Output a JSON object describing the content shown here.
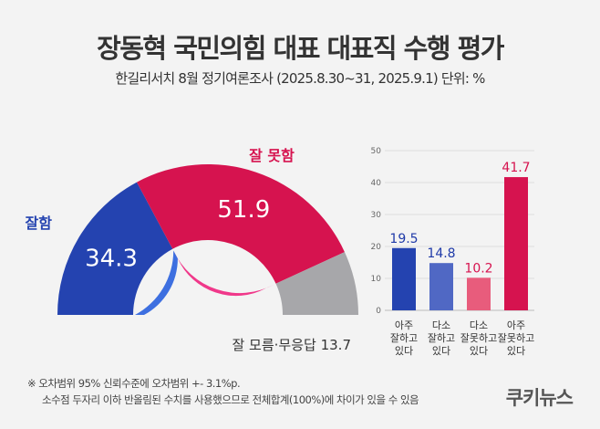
{
  "header": {
    "title": "장동혁 국민의힘 대표 대표직 수행 평가",
    "subtitle": "한길리서치 8월 정기여론조사 (2025.8.30~31, 2025.9.1) 단위: %"
  },
  "chart_data": [
    {
      "type": "pie",
      "style": "half-donut",
      "slices": [
        {
          "label": "잘함",
          "value": 34.3,
          "color": "#2443b0"
        },
        {
          "label": "잘 못함",
          "value": 51.9,
          "color": "#d6134f"
        },
        {
          "label": "잘 모름·무응답",
          "value": 13.7,
          "color": "#a7a7aa"
        }
      ]
    },
    {
      "type": "bar",
      "categories": [
        "아주 잘하고 있다",
        "다소 잘하고 있다",
        "다소 잘못하고 있다",
        "아주 잘못하고 있다"
      ],
      "values": [
        19.5,
        14.8,
        10.2,
        41.7
      ],
      "colors": [
        "#2443b0",
        "#5068c4",
        "#e85c7c",
        "#d6134f"
      ],
      "labels": [
        "19.5",
        "14.8",
        "10.2",
        "41.7"
      ],
      "label_colors": [
        "#1f3aa8",
        "#1f3aa8",
        "#d6134f",
        "#d6134f"
      ],
      "ylim": [
        0,
        50
      ],
      "yticks": [
        "0",
        "10",
        "20",
        "30",
        "40",
        "50"
      ],
      "grid": true,
      "category_lines": [
        [
          "아주",
          "잘하고",
          "있다"
        ],
        [
          "다소",
          "잘하고",
          "있다"
        ],
        [
          "다소",
          "잘못하고",
          "있다"
        ],
        [
          "아주",
          "잘못하고",
          "있다"
        ]
      ]
    }
  ],
  "footer": {
    "note1": "※ 오차범위 95% 신뢰수준에 오차범위 +- 3.1%p.",
    "note2": "소수점 두자리 이하 반올림된 수치를 사용했으므로 전체합계(100%)에 차이가 있을 수 있음",
    "logo": "쿠키뉴스"
  }
}
